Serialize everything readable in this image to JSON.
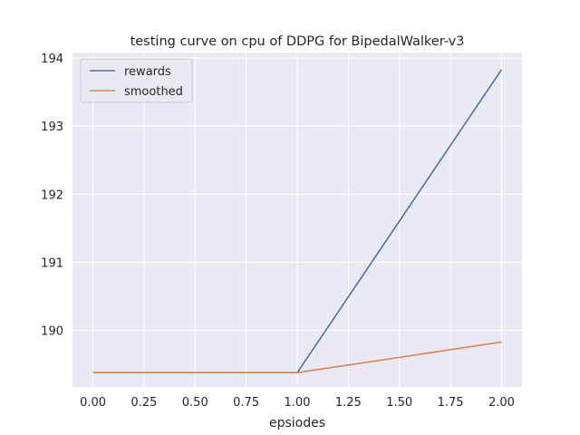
{
  "chart_data": {
    "type": "line",
    "title": "testing curve on cpu of DDPG for BipedalWalker-v3",
    "xlabel": "epsiodes",
    "ylabel": "",
    "xlim": [
      -0.1,
      2.1
    ],
    "ylim": [
      189.17,
      194.08
    ],
    "x_ticks": [
      0.0,
      0.25,
      0.5,
      0.75,
      1.0,
      1.25,
      1.5,
      1.75,
      2.0
    ],
    "x_tick_labels": [
      "0.00",
      "0.25",
      "0.50",
      "0.75",
      "1.00",
      "1.25",
      "1.50",
      "1.75",
      "2.00"
    ],
    "y_ticks": [
      190,
      191,
      192,
      193,
      194
    ],
    "y_tick_labels": [
      "190",
      "191",
      "192",
      "193",
      "194"
    ],
    "grid": true,
    "legend_position": "top-left",
    "series": [
      {
        "name": "rewards",
        "color": "#4c72b0",
        "x": [
          0,
          1,
          2
        ],
        "y": [
          189.38,
          189.38,
          193.83
        ]
      },
      {
        "name": "smoothed",
        "color": "#dd8452",
        "x": [
          0,
          1,
          2
        ],
        "y": [
          189.38,
          189.38,
          189.83
        ]
      }
    ]
  }
}
